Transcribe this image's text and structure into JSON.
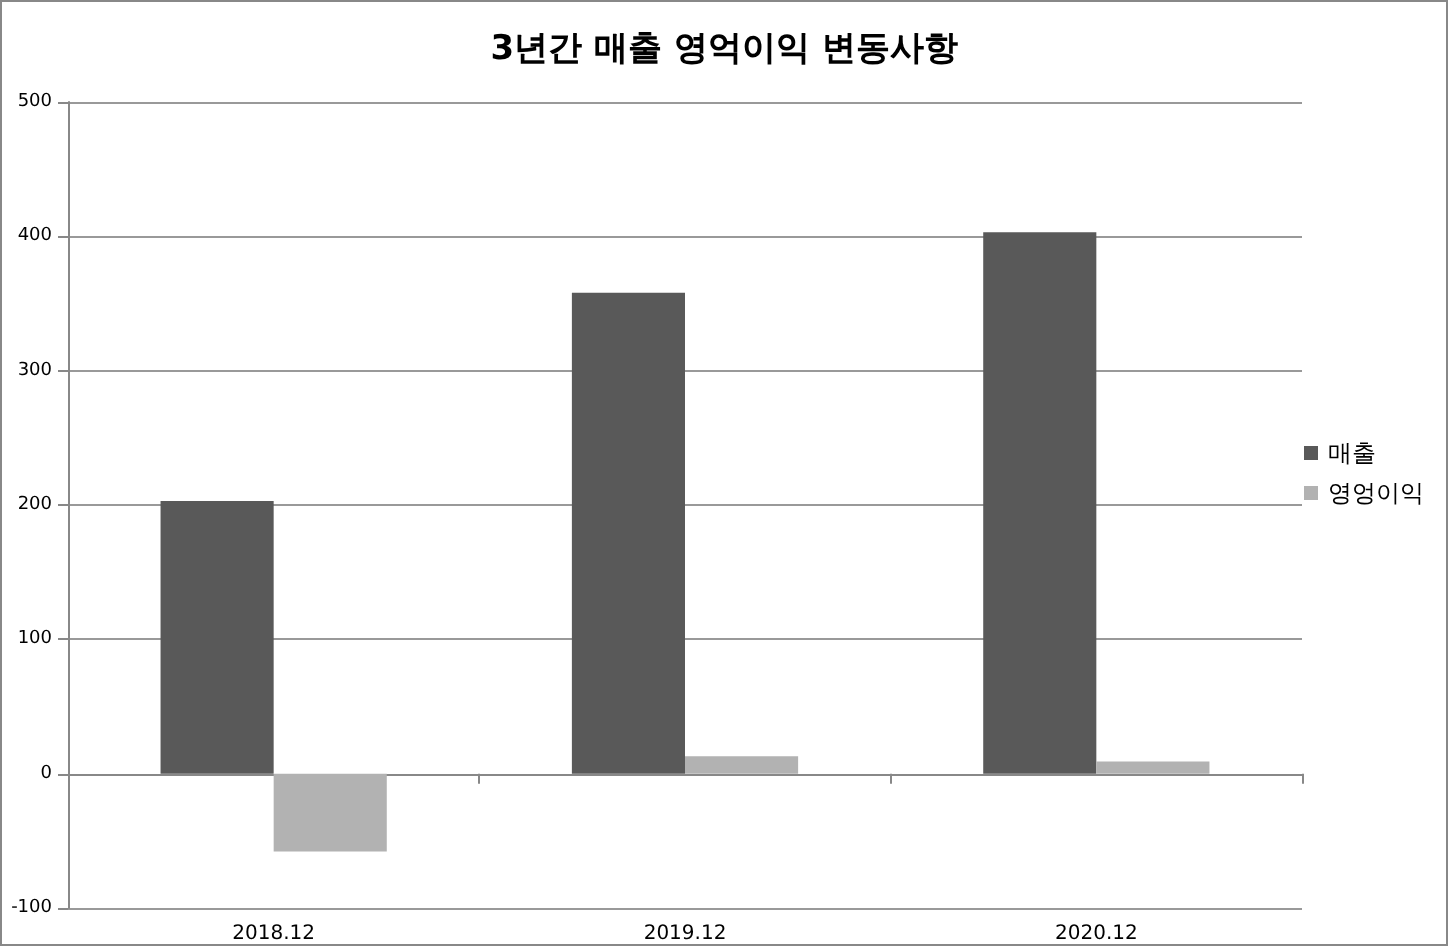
{
  "chart_data": {
    "type": "bar",
    "title": "3년간 매출 영억이익 변동사항",
    "categories": [
      "2018.12",
      "2019.12",
      "2020.12"
    ],
    "series": [
      {
        "name": "매출",
        "color": "#595959",
        "values": [
          203,
          358,
          403
        ]
      },
      {
        "name": "영엉이익",
        "color": "#b2b2b2",
        "values": [
          -58,
          13,
          9
        ]
      }
    ],
    "ylim": [
      -100,
      500
    ],
    "yticks": [
      -100,
      0,
      100,
      200,
      300,
      400,
      500
    ],
    "grid": "y",
    "legend": "right"
  }
}
